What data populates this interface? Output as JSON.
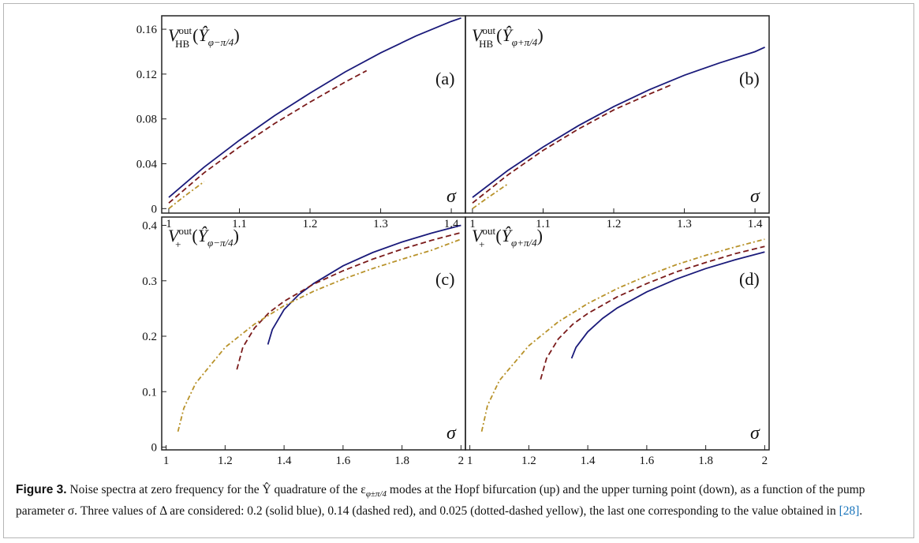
{
  "chart_data": [
    {
      "type": "line",
      "panel": "(a)",
      "ylabel": "V_HB^out(Ŷ_{φ−π/4})",
      "xlabel": "σ",
      "xlim": [
        0.99,
        1.42
      ],
      "ylim": [
        -0.004,
        0.172
      ],
      "x_ticks": [
        1,
        1.1,
        1.2,
        1.3,
        1.4
      ],
      "y_ticks": [
        0,
        0.04,
        0.08,
        0.12,
        0.16
      ],
      "x_tick_labels": [
        "1",
        "1.1",
        "1.2",
        "1.3",
        "1.4"
      ],
      "y_tick_labels": [
        "0",
        "0.04",
        "0.08",
        "0.12",
        "0.16"
      ],
      "series": [
        {
          "style": "solid",
          "color": "#1a1a7a",
          "x": [
            1.0,
            1.05,
            1.1,
            1.15,
            1.2,
            1.25,
            1.3,
            1.35,
            1.4,
            1.414
          ],
          "y": [
            0.01,
            0.037,
            0.061,
            0.083,
            0.103,
            0.122,
            0.139,
            0.154,
            0.167,
            0.17
          ]
        },
        {
          "style": "dashed",
          "color": "#7a1a1a",
          "x": [
            1.0,
            1.05,
            1.1,
            1.15,
            1.2,
            1.25,
            1.28
          ],
          "y": [
            0.005,
            0.032,
            0.055,
            0.076,
            0.095,
            0.113,
            0.123
          ]
        },
        {
          "style": "dashdot",
          "color": "#b8922a",
          "x": [
            1.0,
            1.02,
            1.05
          ],
          "y": [
            0.0,
            0.01,
            0.024
          ]
        }
      ]
    },
    {
      "type": "line",
      "panel": "(b)",
      "ylabel": "V_HB^out(Ŷ_{φ+π/4})",
      "xlabel": "σ",
      "xlim": [
        0.99,
        1.42
      ],
      "ylim": [
        -0.004,
        0.172
      ],
      "x_ticks": [
        1,
        1.1,
        1.2,
        1.3,
        1.4
      ],
      "x_tick_labels": [
        "1",
        "1.1",
        "1.2",
        "1.3",
        "1.4"
      ],
      "series": [
        {
          "style": "solid",
          "color": "#1a1a7a",
          "x": [
            1.0,
            1.05,
            1.1,
            1.15,
            1.2,
            1.25,
            1.3,
            1.35,
            1.4,
            1.414
          ],
          "y": [
            0.01,
            0.034,
            0.055,
            0.074,
            0.091,
            0.106,
            0.119,
            0.13,
            0.14,
            0.144
          ]
        },
        {
          "style": "dashed",
          "color": "#7a1a1a",
          "x": [
            1.0,
            1.05,
            1.1,
            1.15,
            1.2,
            1.25,
            1.28
          ],
          "y": [
            0.005,
            0.03,
            0.052,
            0.071,
            0.088,
            0.102,
            0.11
          ]
        },
        {
          "style": "dashdot",
          "color": "#b8922a",
          "x": [
            1.0,
            1.02,
            1.05
          ],
          "y": [
            0.0,
            0.009,
            0.022
          ]
        }
      ]
    },
    {
      "type": "line",
      "panel": "(c)",
      "ylabel": "V_+^out(Ŷ_{φ−π/4})",
      "xlabel": "σ",
      "xlim": [
        0.985,
        2.015
      ],
      "ylim": [
        -0.005,
        0.415
      ],
      "x_ticks": [
        1,
        1.2,
        1.4,
        1.6,
        1.8,
        2
      ],
      "y_ticks": [
        0,
        0.1,
        0.2,
        0.3,
        0.4
      ],
      "x_tick_labels": [
        "1",
        "1.2",
        "1.4",
        "1.6",
        "1.8",
        "2"
      ],
      "y_tick_labels": [
        "0",
        "0.1",
        "0.2",
        "0.3",
        "0.4"
      ],
      "series": [
        {
          "style": "solid",
          "color": "#1a1a7a",
          "x": [
            1.345,
            1.36,
            1.4,
            1.45,
            1.5,
            1.6,
            1.7,
            1.8,
            1.9,
            2.0
          ],
          "y": [
            0.185,
            0.212,
            0.248,
            0.275,
            0.295,
            0.327,
            0.351,
            0.37,
            0.386,
            0.4
          ]
        },
        {
          "style": "dashed",
          "color": "#7a1a1a",
          "x": [
            1.24,
            1.26,
            1.3,
            1.35,
            1.4,
            1.5,
            1.6,
            1.7,
            1.8,
            1.9,
            2.0
          ],
          "y": [
            0.14,
            0.18,
            0.215,
            0.243,
            0.263,
            0.294,
            0.318,
            0.339,
            0.357,
            0.373,
            0.387
          ]
        },
        {
          "style": "dashdot",
          "color": "#b8922a",
          "x": [
            1.04,
            1.06,
            1.1,
            1.2,
            1.3,
            1.4,
            1.5,
            1.6,
            1.7,
            1.8,
            1.9,
            2.0
          ],
          "y": [
            0.028,
            0.07,
            0.115,
            0.18,
            0.222,
            0.255,
            0.281,
            0.303,
            0.322,
            0.339,
            0.355,
            0.375
          ]
        }
      ]
    },
    {
      "type": "line",
      "panel": "(d)",
      "ylabel": "V_+^out(Ŷ_{φ+π/4})",
      "xlabel": "σ",
      "xlim": [
        0.985,
        2.015
      ],
      "ylim": [
        -0.005,
        0.415
      ],
      "x_ticks": [
        1,
        1.2,
        1.4,
        1.6,
        1.8,
        2
      ],
      "x_tick_labels": [
        "1",
        "1.2",
        "1.4",
        "1.6",
        "1.8",
        "2"
      ],
      "series": [
        {
          "style": "solid",
          "color": "#1a1a7a",
          "x": [
            1.345,
            1.36,
            1.4,
            1.45,
            1.5,
            1.6,
            1.7,
            1.8,
            1.9,
            2.0
          ],
          "y": [
            0.16,
            0.18,
            0.208,
            0.232,
            0.251,
            0.28,
            0.303,
            0.322,
            0.338,
            0.352
          ]
        },
        {
          "style": "dashed",
          "color": "#7a1a1a",
          "x": [
            1.24,
            1.26,
            1.3,
            1.35,
            1.4,
            1.5,
            1.6,
            1.7,
            1.8,
            1.9,
            2.0
          ],
          "y": [
            0.122,
            0.16,
            0.195,
            0.222,
            0.241,
            0.271,
            0.295,
            0.316,
            0.333,
            0.349,
            0.362
          ]
        },
        {
          "style": "dashdot",
          "color": "#b8922a",
          "x": [
            1.04,
            1.06,
            1.1,
            1.2,
            1.3,
            1.4,
            1.5,
            1.6,
            1.7,
            1.8,
            1.9,
            2.0
          ],
          "y": [
            0.028,
            0.075,
            0.12,
            0.183,
            0.226,
            0.259,
            0.286,
            0.309,
            0.329,
            0.346,
            0.361,
            0.375
          ]
        }
      ]
    }
  ],
  "caption": {
    "label": "Figure 3.",
    "text_1": "Noise spectra at zero frequency for the Ŷ quadrature of the ε",
    "text_1_sub": "φ±π/4",
    "text_2": " modes at the Hopf bifurcation (up) and the upper turning point (down), as a function of the pump parameter σ. Three values of Δ are considered: 0.2 (solid blue), 0.14 (dashed red), and 0.025 (dotted-dashed yellow), the last one corresponding to the value obtained in ",
    "cite": "[28]",
    "text_end": "."
  }
}
